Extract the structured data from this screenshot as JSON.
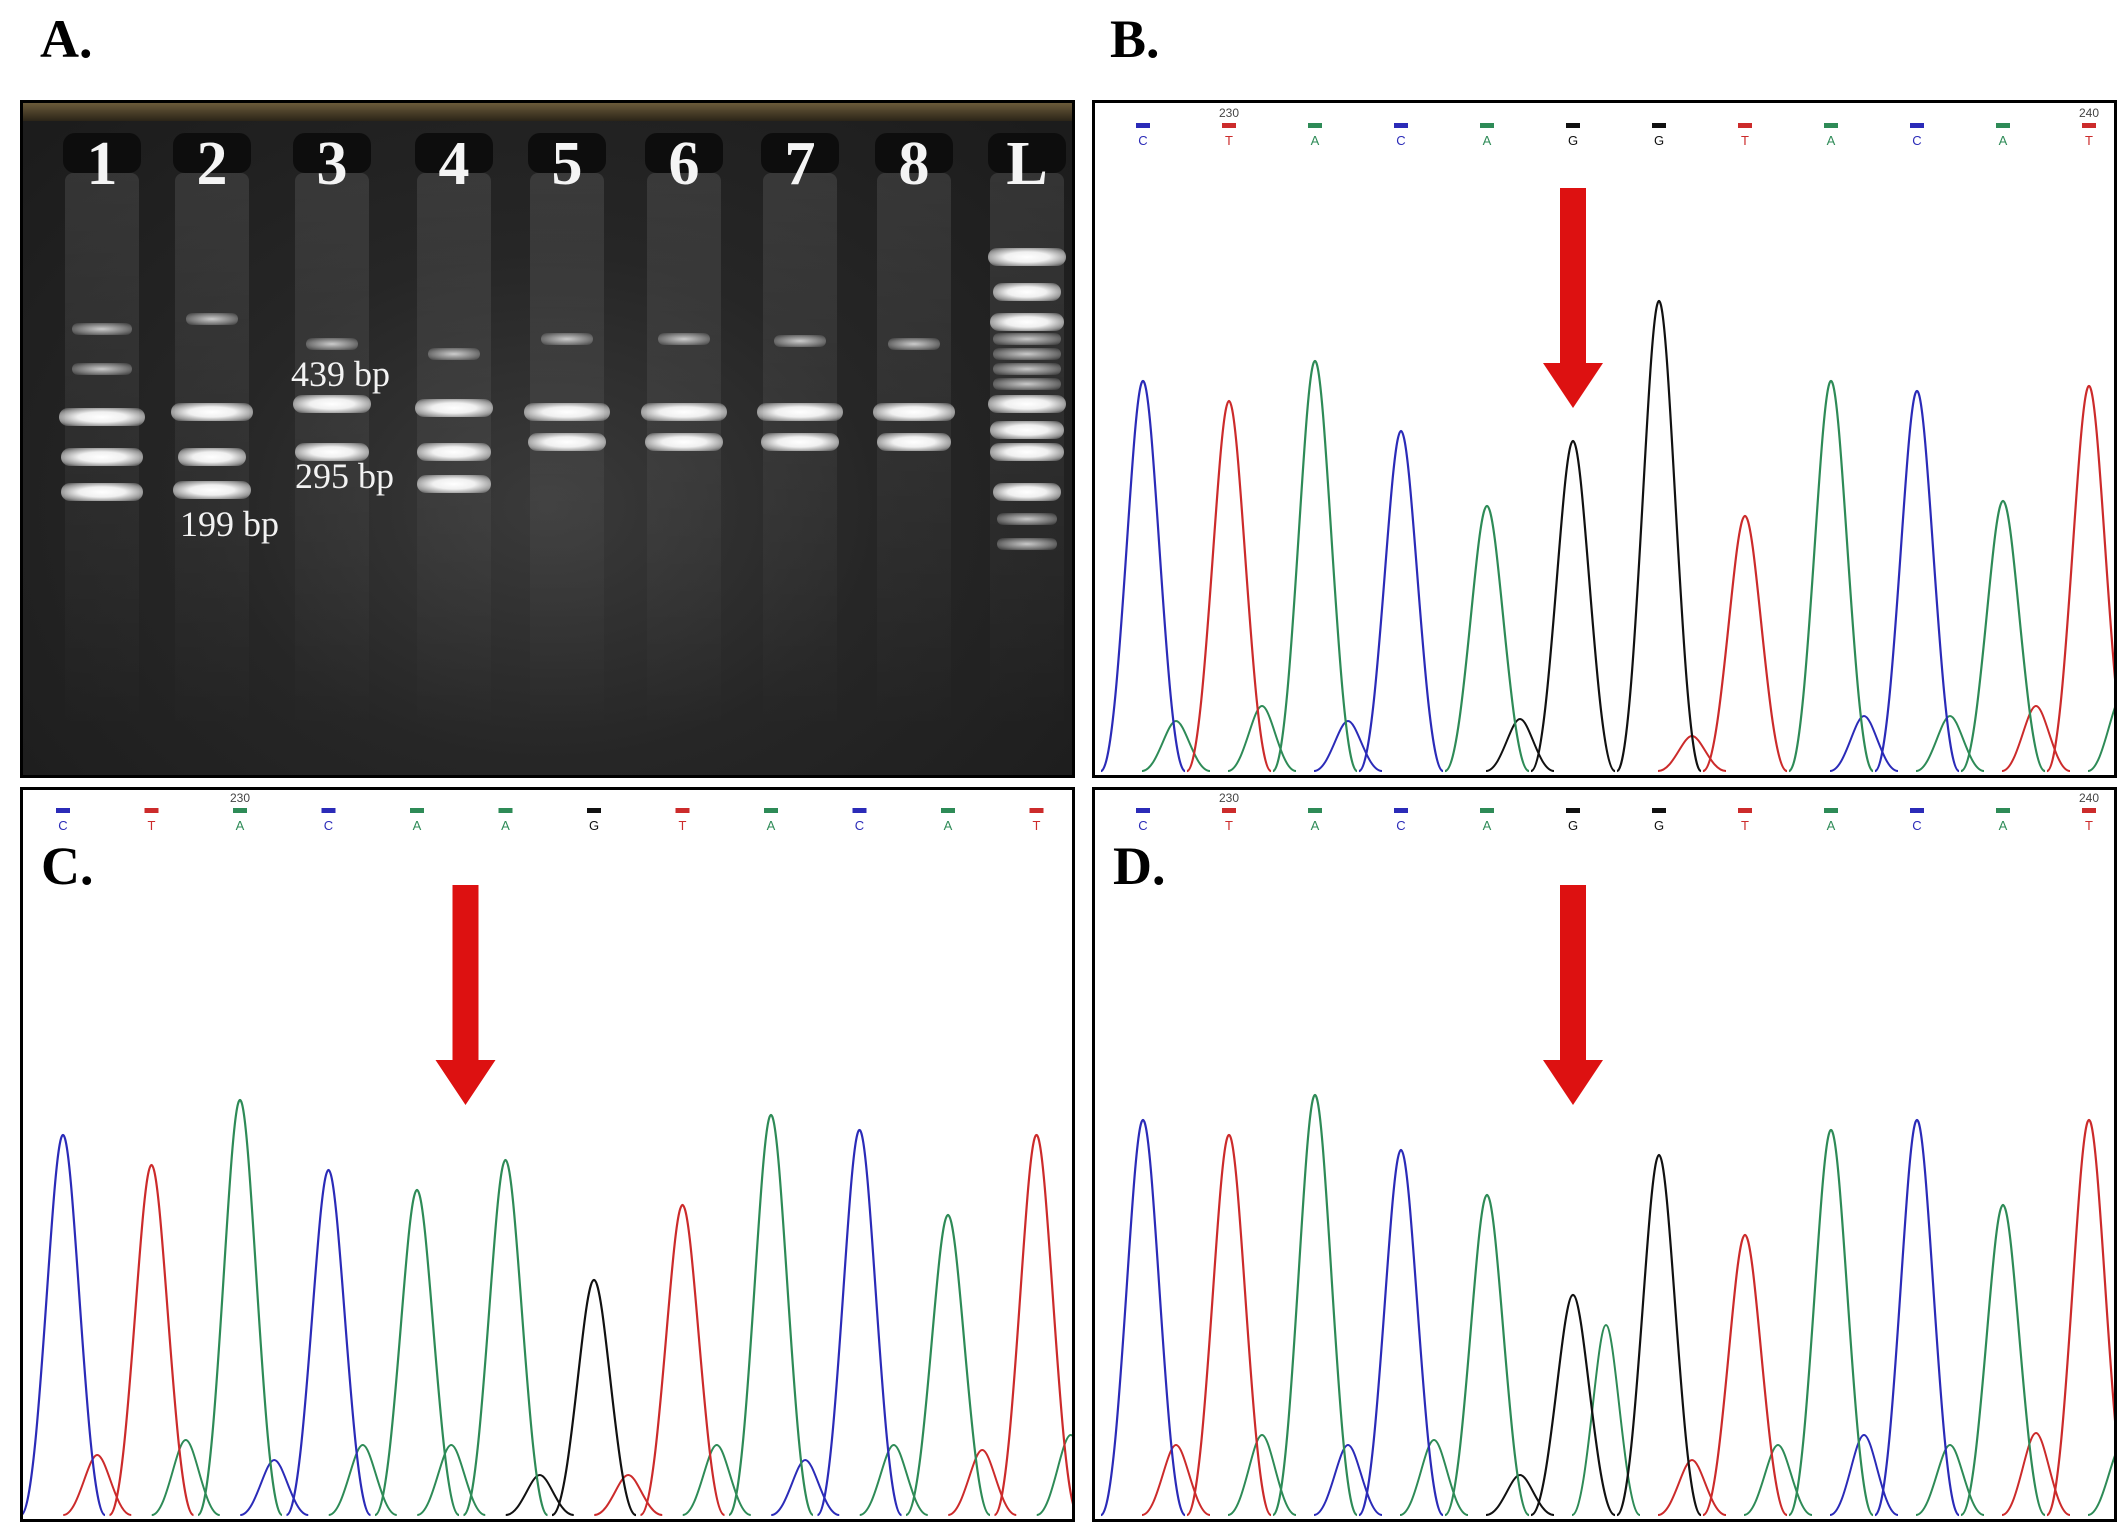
{
  "panel_labels": {
    "a": "A.",
    "b": "B.",
    "c": "C.",
    "d": "D."
  },
  "gel": {
    "lanes": [
      "1",
      "2",
      "3",
      "4",
      "5",
      "6",
      "7",
      "8",
      "L"
    ],
    "band_labels": {
      "bp439": "439 bp",
      "bp295": "295 bp",
      "bp199": "199 bp"
    }
  },
  "chromatograms": {
    "colors": {
      "A": "#2e8b57",
      "C": "#2b2bb8",
      "G": "#111111",
      "T": "#cc2b2b",
      "arrow": "#dd1111"
    },
    "b": {
      "sequence": [
        "C",
        "T",
        "A",
        "C",
        "A",
        "G",
        "G",
        "T",
        "A",
        "C",
        "A",
        "T"
      ],
      "position_marks": [
        {
          "index": 1,
          "text": "230"
        },
        {
          "index": 11,
          "text": "240"
        }
      ],
      "arrow_index": 5
    },
    "c": {
      "sequence": [
        "C",
        "T",
        "A",
        "C",
        "A",
        "A",
        "G",
        "T",
        "A",
        "C",
        "A",
        "T"
      ],
      "position_marks": [
        {
          "index": 2,
          "text": "230"
        }
      ],
      "arrow_index": 5
    },
    "d": {
      "sequence": [
        "C",
        "T",
        "A",
        "C",
        "A",
        "G",
        "G",
        "T",
        "A",
        "C",
        "A",
        "T"
      ],
      "position_marks": [
        {
          "index": 1,
          "text": "230"
        },
        {
          "index": 11,
          "text": "240"
        }
      ],
      "arrow_index": 5
    }
  }
}
